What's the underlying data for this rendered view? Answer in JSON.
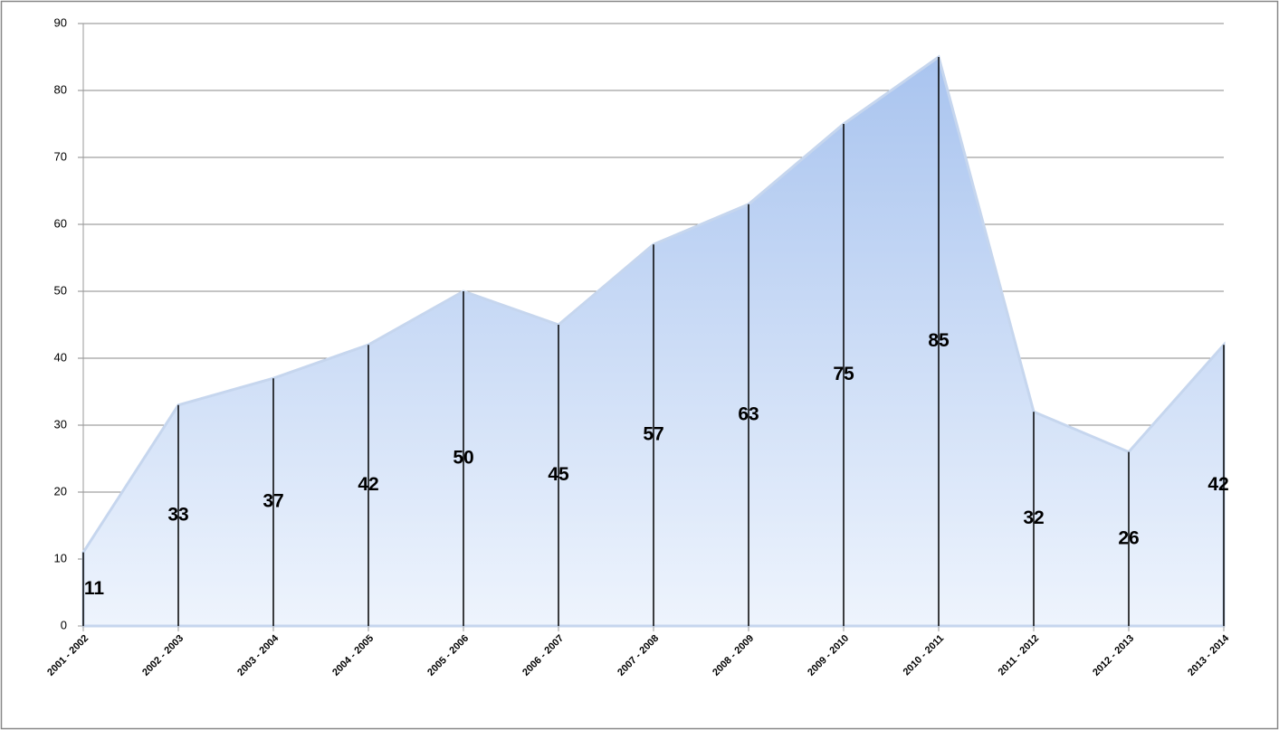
{
  "chart_data": {
    "type": "area",
    "categories": [
      "2001 - 2002",
      "2002 - 2003",
      "2003 - 2004",
      "2004 - 2005",
      "2005 - 2006",
      "2006 - 2007",
      "2007 - 2008",
      "2008 - 2009",
      "2009 - 2010",
      "2010 - 2011",
      "2011 - 2012",
      "2012 - 2013",
      "2013 - 2014"
    ],
    "values": [
      11,
      33,
      37,
      42,
      50,
      45,
      57,
      63,
      75,
      85,
      32,
      26,
      42
    ],
    "color": "#a9c4ef",
    "ylim": [
      0,
      90
    ],
    "yticks": [
      0,
      10,
      20,
      30,
      40,
      50,
      60,
      70,
      80,
      90
    ],
    "grid": true,
    "drop_lines": true
  }
}
